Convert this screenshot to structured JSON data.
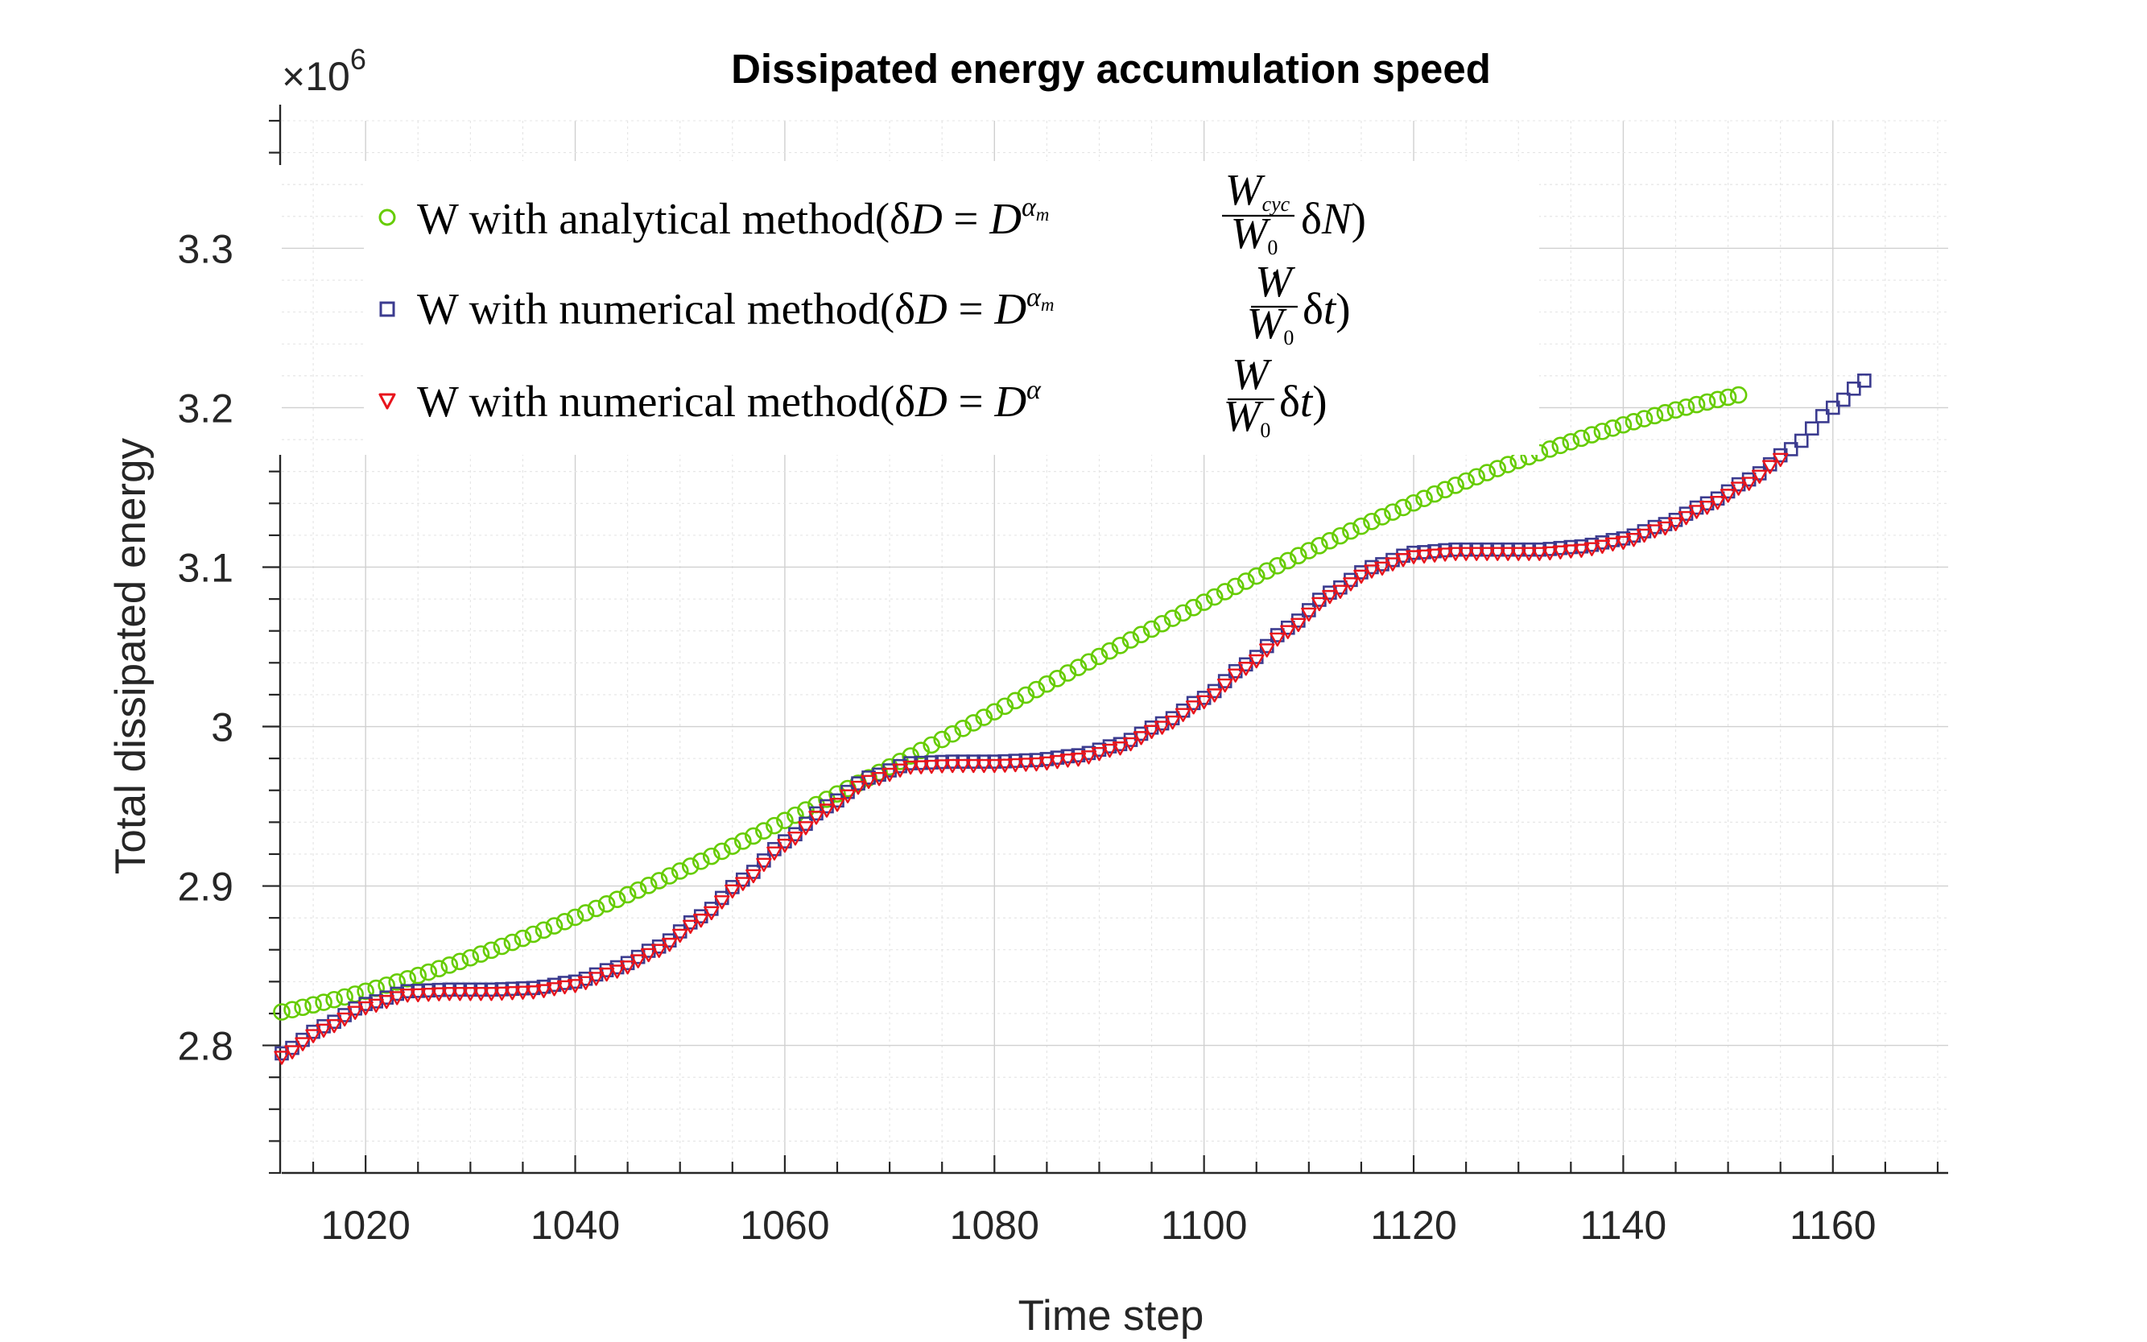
{
  "chart_data": {
    "type": "scatter",
    "title": "Dissipated energy accumulation speed",
    "xlabel": "Time step",
    "ylabel": "Total dissipated energy",
    "exponent_label": "×10",
    "exponent_power": "6",
    "xlim": [
      1012,
      1171
    ],
    "ylim": [
      2.72,
      3.38
    ],
    "xticks": [
      1020,
      1040,
      1060,
      1080,
      1100,
      1120,
      1140,
      1160
    ],
    "xtick_labels": [
      "1020",
      "1040",
      "1060",
      "1080",
      "1100",
      "1120",
      "1140",
      "1160"
    ],
    "yticks": [
      2.8,
      2.9,
      3.0,
      3.1,
      3.2,
      3.3
    ],
    "ytick_labels": [
      "2.8",
      "2.9",
      "3",
      "3.1",
      "3.2",
      "3.3"
    ],
    "grid": true,
    "legend_position": "top-left",
    "series": [
      {
        "legend_text": "W with analytical method(δD = D^{α_m} W_cyc/W_0 δN)",
        "marker": "circle",
        "color": "#66cc00",
        "x_start": 1012,
        "x_end": 1151,
        "x_step": 1,
        "y_points": [
          [
            1012,
            2.821
          ],
          [
            1151,
            3.208
          ]
        ]
      },
      {
        "legend_text": "W with numerical method(δD = D^{α_m} Ẇ/W_0 δt)",
        "marker": "square",
        "color": "#3b3b8f",
        "x_start": 1012,
        "x_end": 1163,
        "x_step": 1,
        "y_points": [
          [
            1012,
            2.795
          ],
          [
            1016,
            2.812
          ],
          [
            1020,
            2.826
          ],
          [
            1024,
            2.834
          ],
          [
            1028,
            2.835
          ],
          [
            1032,
            2.835
          ],
          [
            1036,
            2.836
          ],
          [
            1040,
            2.84
          ],
          [
            1044,
            2.849
          ],
          [
            1048,
            2.862
          ],
          [
            1052,
            2.881
          ],
          [
            1056,
            2.904
          ],
          [
            1060,
            2.928
          ],
          [
            1064,
            2.95
          ],
          [
            1068,
            2.968
          ],
          [
            1072,
            2.977
          ],
          [
            1076,
            2.978
          ],
          [
            1080,
            2.978
          ],
          [
            1084,
            2.979
          ],
          [
            1088,
            2.982
          ],
          [
            1092,
            2.989
          ],
          [
            1096,
            3.002
          ],
          [
            1100,
            3.018
          ],
          [
            1104,
            3.039
          ],
          [
            1108,
            3.062
          ],
          [
            1112,
            3.084
          ],
          [
            1116,
            3.1
          ],
          [
            1120,
            3.109
          ],
          [
            1124,
            3.111
          ],
          [
            1128,
            3.111
          ],
          [
            1132,
            3.111
          ],
          [
            1136,
            3.113
          ],
          [
            1140,
            3.118
          ],
          [
            1144,
            3.127
          ],
          [
            1148,
            3.14
          ],
          [
            1152,
            3.155
          ],
          [
            1156,
            3.174
          ],
          [
            1160,
            3.2
          ],
          [
            1163,
            3.217
          ]
        ]
      },
      {
        "legend_text": "W with numerical method(δD = D^{α} Ẇ/W_0 δt)",
        "marker": "triangle-down",
        "color": "#e8141c",
        "x_start": 1012,
        "x_end": 1155,
        "x_step": 1,
        "y_points": [
          [
            1012,
            2.793
          ],
          [
            1016,
            2.81
          ],
          [
            1020,
            2.824
          ],
          [
            1024,
            2.832
          ],
          [
            1028,
            2.833
          ],
          [
            1032,
            2.833
          ],
          [
            1036,
            2.834
          ],
          [
            1040,
            2.838
          ],
          [
            1044,
            2.847
          ],
          [
            1048,
            2.86
          ],
          [
            1052,
            2.879
          ],
          [
            1056,
            2.902
          ],
          [
            1060,
            2.926
          ],
          [
            1064,
            2.948
          ],
          [
            1068,
            2.966
          ],
          [
            1072,
            2.975
          ],
          [
            1076,
            2.976
          ],
          [
            1080,
            2.976
          ],
          [
            1084,
            2.977
          ],
          [
            1088,
            2.98
          ],
          [
            1092,
            2.987
          ],
          [
            1096,
            3.0
          ],
          [
            1100,
            3.016
          ],
          [
            1104,
            3.037
          ],
          [
            1108,
            3.06
          ],
          [
            1112,
            3.082
          ],
          [
            1116,
            3.098
          ],
          [
            1120,
            3.107
          ],
          [
            1124,
            3.109
          ],
          [
            1128,
            3.109
          ],
          [
            1132,
            3.109
          ],
          [
            1136,
            3.111
          ],
          [
            1140,
            3.116
          ],
          [
            1144,
            3.125
          ],
          [
            1148,
            3.138
          ],
          [
            1152,
            3.153
          ],
          [
            1155,
            3.168
          ]
        ]
      }
    ]
  }
}
